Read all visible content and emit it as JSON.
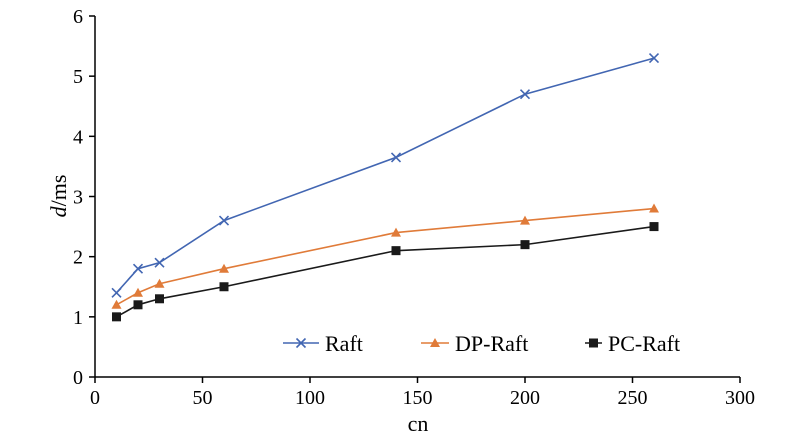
{
  "chart_data": {
    "type": "line",
    "xlabel": "cn",
    "ylabel_italic": "d",
    "ylabel_unit": "/ms",
    "xlim": [
      0,
      300
    ],
    "ylim": [
      0,
      6
    ],
    "xticks": [
      0,
      50,
      100,
      150,
      200,
      250,
      300
    ],
    "yticks": [
      0,
      1,
      2,
      3,
      4,
      5,
      6
    ],
    "grid": false,
    "legend_position": "bottom-right",
    "x": [
      10,
      20,
      30,
      60,
      140,
      200,
      260
    ],
    "series": [
      {
        "name": "Raft",
        "color": "#4266b2",
        "marker": "x",
        "values": [
          1.4,
          1.8,
          1.9,
          2.6,
          3.65,
          4.7,
          5.3
        ]
      },
      {
        "name": "DP-Raft",
        "color": "#e07b39",
        "marker": "triangle",
        "values": [
          1.2,
          1.4,
          1.55,
          1.8,
          2.4,
          2.6,
          2.8
        ]
      },
      {
        "name": "PC-Raft",
        "color": "#1a1a1a",
        "marker": "square",
        "values": [
          1.0,
          1.2,
          1.3,
          1.5,
          2.1,
          2.2,
          2.5
        ]
      }
    ]
  }
}
